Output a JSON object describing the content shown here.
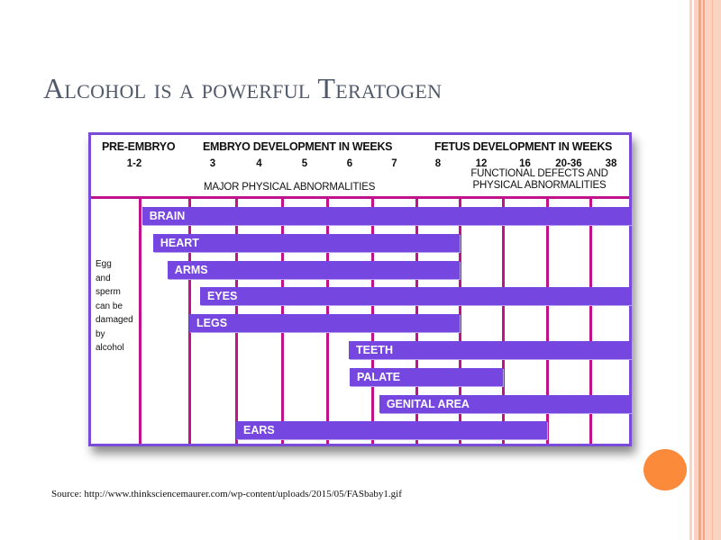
{
  "slide": {
    "title": "Alcohol is a powerful Teratogen",
    "source": "Source: http://www.thinksciencemaurer.com/wp-content/uploads/2015/05/FASbaby1.gif",
    "accent_color": "#fb8a3a",
    "border_color": "#fbcdb8"
  },
  "chart_data": {
    "type": "gantt",
    "headers": {
      "pre_embryo": "PRE-EMBRYO",
      "embryo": "EMBRYO DEVELOPMENT IN WEEKS",
      "fetus": "FETUS DEVELOPMENT IN WEEKS"
    },
    "periods": [
      "1-2",
      "3",
      "4",
      "5",
      "6",
      "7",
      "8",
      "12",
      "16",
      "20-36",
      "38"
    ],
    "notes": {
      "embryo": "MAJOR PHYSICAL ABNORMALITIES",
      "fetus_line1": "FUNCTIONAL DEFECTS AND",
      "fetus_line2": "PHYSICAL ABNORMALITIES"
    },
    "side_note": [
      "Egg",
      "and",
      "sperm",
      "can be",
      "damaged",
      "by",
      "alcohol"
    ],
    "bar_units": "period columns from start of 1-2 (0) to end of 38 (11)",
    "bars": [
      {
        "label": "BRAIN",
        "start": 0.05,
        "end": 11
      },
      {
        "label": "HEART",
        "start": 0.27,
        "end": 7
      },
      {
        "label": "ARMS",
        "start": 0.56,
        "end": 7
      },
      {
        "label": "EYES",
        "start": 1.23,
        "end": 11
      },
      {
        "label": "LEGS",
        "start": 1.0,
        "end": 7
      },
      {
        "label": "TEETH",
        "start": 4.48,
        "end": 11
      },
      {
        "label": "PALATE",
        "start": 4.5,
        "end": 8
      },
      {
        "label": "GENITAL AREA",
        "start": 5.16,
        "end": 11
      },
      {
        "label": "EARS",
        "start": 2.0,
        "end": 9
      }
    ],
    "colors": {
      "bar": "#7646e0",
      "grid": "#c0128a",
      "frame": "#7a4ad8"
    }
  }
}
